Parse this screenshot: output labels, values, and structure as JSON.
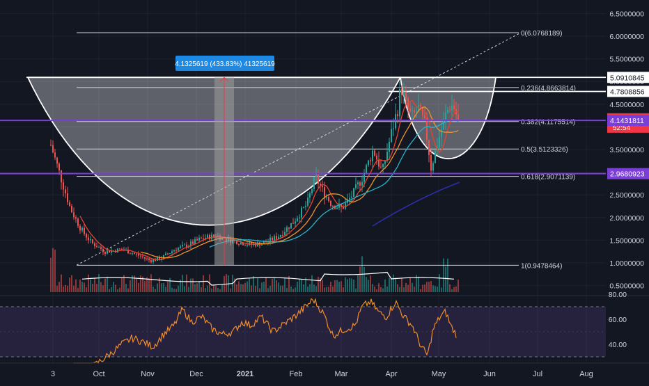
{
  "chart_data": {
    "type": "candlestick",
    "title": "",
    "x_tick_labels": [
      "3",
      "Oct",
      "Nov",
      "Dec",
      "2021",
      "Feb",
      "Mar",
      "Apr",
      "May",
      "Jun",
      "Jul",
      "Aug"
    ],
    "price_axis_labels": [
      "6.5000000",
      "6.0000000",
      "5.5000000",
      "5.0000000",
      "4.5000000",
      "4.0000000",
      "3.5000000",
      "3.0000000",
      "2.5000000",
      "2.0000000",
      "1.5000000",
      "1.0000000",
      "0.5000000"
    ],
    "price_axis_values": [
      6.5,
      6.0,
      5.5,
      5.0,
      4.5,
      4.0,
      3.5,
      3.0,
      2.5,
      2.0,
      1.5,
      1.0,
      0.5
    ],
    "fib_levels": [
      {
        "label": "0(6.0768189)",
        "value": 6.0768189
      },
      {
        "label": "0.236(4.8663814)",
        "value": 4.8663814
      },
      {
        "label": "0.382(4.1175514)",
        "value": 4.1175514
      },
      {
        "label": "0.5(3.5123326)",
        "value": 3.5123326
      },
      {
        "label": "0.618(2.9071139)",
        "value": 2.9071139
      },
      {
        "label": "1(0.9478464)",
        "value": 0.9478464
      }
    ],
    "price_tags": [
      {
        "label": "5.0910845",
        "value": 5.0910845,
        "style": "white"
      },
      {
        "label": "4.7808856",
        "value": 4.7808856,
        "style": "white"
      },
      {
        "label": "4.1768482",
        "sub": "52:54",
        "value": 4.1768482,
        "style": "red"
      },
      {
        "label": "4.1431811",
        "value": 4.1431811,
        "style": "purple"
      },
      {
        "label": "2.9680923",
        "value": 2.9680923,
        "style": "purple"
      }
    ],
    "horizontal_lines": [
      {
        "value": 4.1431811,
        "color": "#7b3fd8"
      },
      {
        "value": 2.9680923,
        "color": "#7b3fd8"
      }
    ],
    "measure_label": "4.1325619 (433.83%) 41325619",
    "measure_range": {
      "from": 0.95,
      "to": 5.09
    },
    "rsi_axis_labels": [
      "80.00",
      "60.00",
      "40.00"
    ],
    "rsi_axis_values": [
      80,
      60,
      40
    ],
    "rsi_band": [
      30,
      70
    ],
    "annotations": [
      "cup and handle pattern",
      "rising trendline"
    ],
    "series_colors": {
      "up": "#26a69a",
      "down": "#ef5350",
      "ma_red": "#e8442f",
      "ma_orange": "#f0932b",
      "ma_teal": "#26b5c9",
      "ma_navy": "#2b2fa8",
      "rsi": "#f28c28",
      "volume_ma": "#ffffff"
    }
  }
}
